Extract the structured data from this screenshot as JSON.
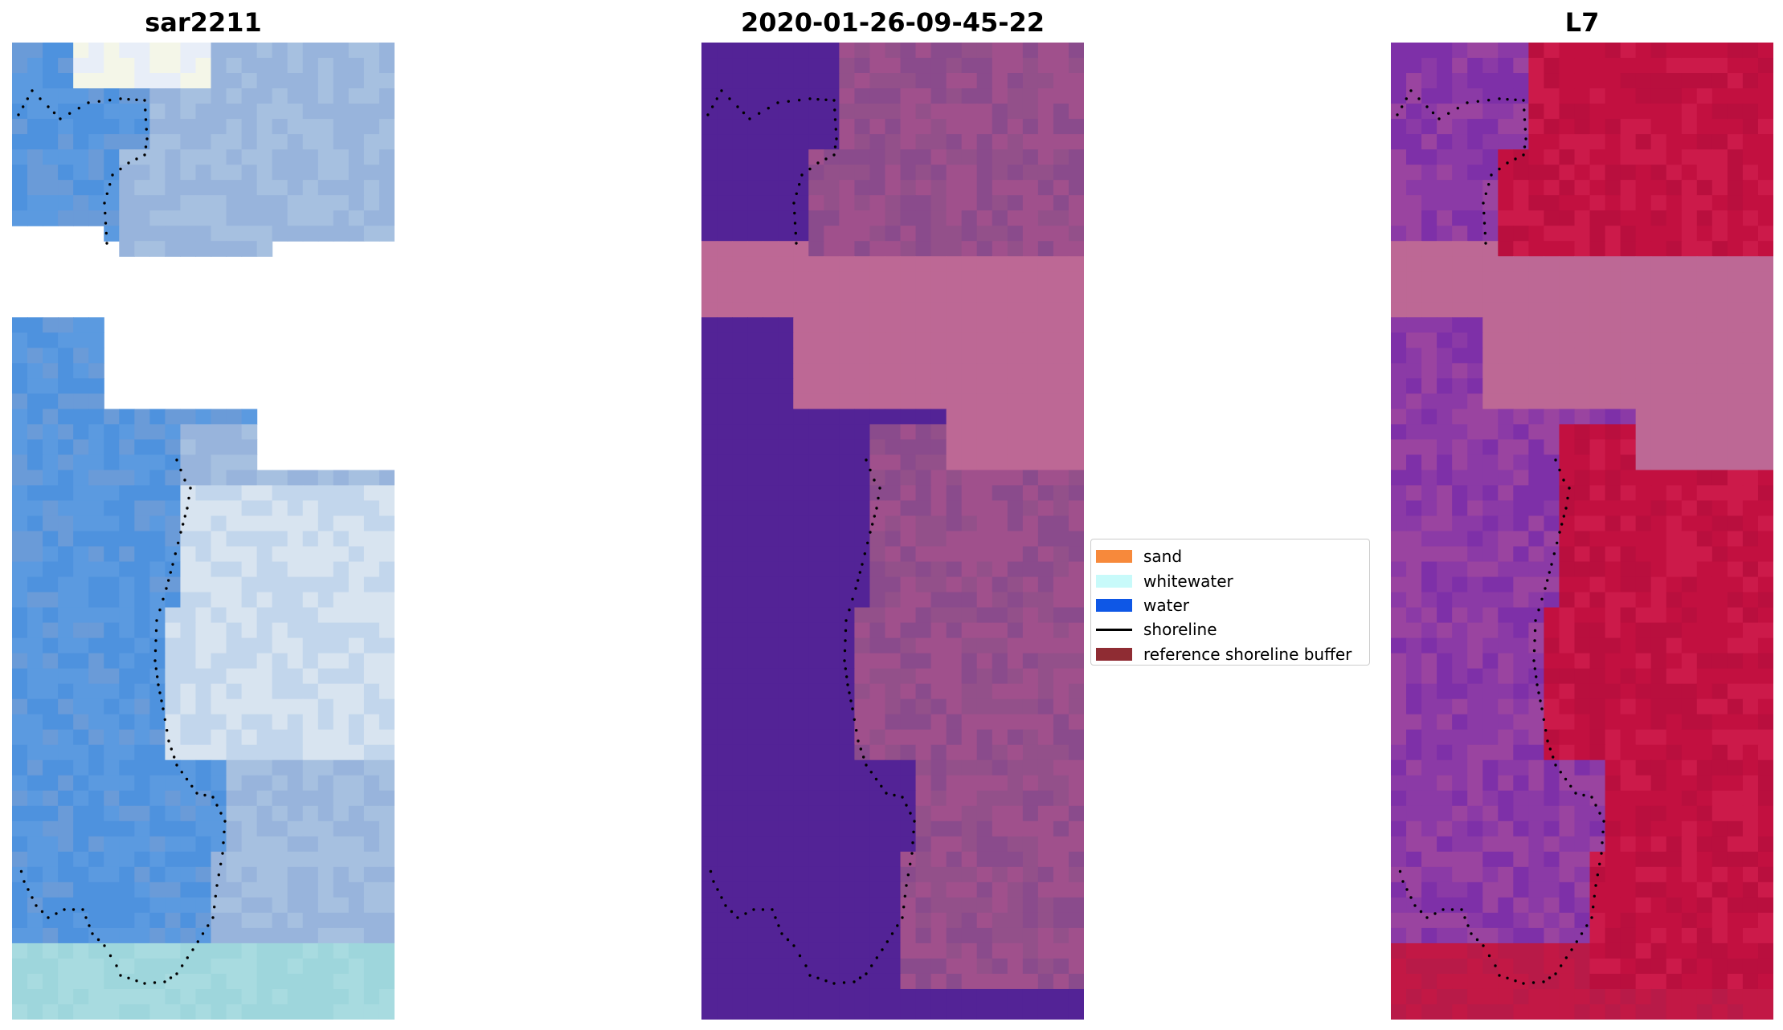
{
  "panels": [
    {
      "title": "sar2211",
      "theme": "rgb"
    },
    {
      "title": "2020-01-26-09-45-22",
      "theme": "classified"
    },
    {
      "title": "L7",
      "theme": "index"
    }
  ],
  "legend": {
    "items": [
      {
        "label": "sand",
        "kind": "patch",
        "color": "#f7893b"
      },
      {
        "label": "whitewater",
        "kind": "patch",
        "color": "#c8fafa"
      },
      {
        "label": "water",
        "kind": "patch",
        "color": "#0e57e6"
      },
      {
        "label": "shoreline",
        "kind": "line",
        "color": "#000000"
      },
      {
        "label": "reference shoreline buffer",
        "kind": "patch",
        "color": "#8f2c33"
      }
    ]
  },
  "colors": {
    "nodata_band": "#bd6895",
    "classified_water": "#532396",
    "index_land": "#c21040",
    "index_water": "#8b3aa6"
  }
}
